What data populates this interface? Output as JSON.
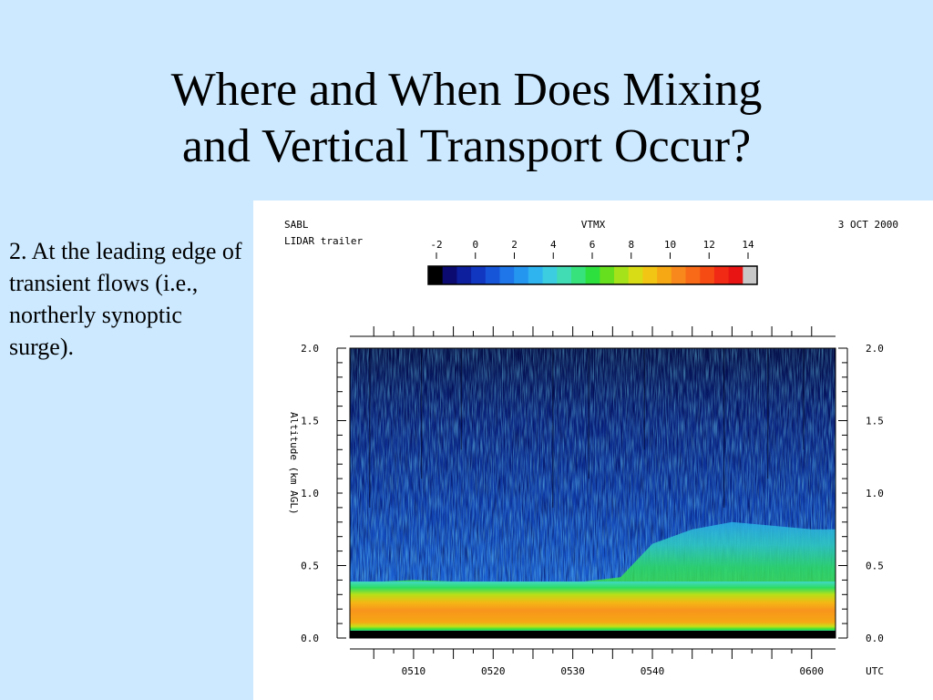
{
  "slide": {
    "title_line1": "Where and When Does Mixing",
    "title_line2": "and Vertical Transport Occur?",
    "bullet": "2. At the leading edge of transient flows (i.e., northerly synoptic surge)."
  },
  "chart_data": {
    "type": "heatmap",
    "title": "VTMX",
    "header_left": [
      "SABL",
      "LIDAR trailer"
    ],
    "header_right": "3 OCT 2000",
    "ylabel": "Altitude (km AGL)",
    "x_unit_label": "UTC",
    "x_ticks": [
      "0510",
      "0520",
      "0530",
      "0540",
      "0600"
    ],
    "y_ticks": [
      "0.0",
      "0.5",
      "1.0",
      "1.5",
      "2.0"
    ],
    "ylim": [
      0,
      2.0
    ],
    "colorbar": {
      "ticks": [
        "-2",
        "0",
        "2",
        "4",
        "6",
        "8",
        "10",
        "12",
        "14"
      ],
      "range": [
        -2,
        14
      ],
      "colors": [
        "#000000",
        "#0a0a70",
        "#0d1f9c",
        "#1136c0",
        "#1755d8",
        "#1e76e8",
        "#2596f0",
        "#2fb4f0",
        "#3ccde0",
        "#41dcb4",
        "#37e27c",
        "#2ee03e",
        "#66e01e",
        "#a6e21a",
        "#d8dc16",
        "#f2c414",
        "#f6a814",
        "#f8881c",
        "#f86a18",
        "#f64c14",
        "#f02a14",
        "#e81414",
        "#c8c8c8"
      ]
    },
    "mixed_layer_top_km": [
      {
        "t": "0502",
        "z": 0.38
      },
      {
        "t": "0510",
        "z": 0.4
      },
      {
        "t": "0520",
        "z": 0.38
      },
      {
        "t": "0530",
        "z": 0.38
      },
      {
        "t": "0536",
        "z": 0.42
      },
      {
        "t": "0540",
        "z": 0.65
      },
      {
        "t": "0545",
        "z": 0.75
      },
      {
        "t": "0550",
        "z": 0.8
      },
      {
        "t": "0600",
        "z": 0.75
      }
    ]
  }
}
